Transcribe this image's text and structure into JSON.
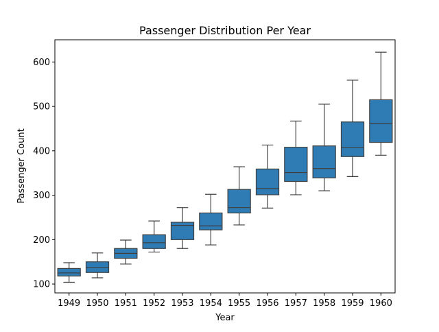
{
  "chart_data": {
    "type": "boxplot",
    "title": "Passenger Distribution Per Year",
    "xlabel": "Year",
    "ylabel": "Passenger Count",
    "ylim": [
      80,
      650
    ],
    "yticks": [
      100,
      200,
      300,
      400,
      500,
      600
    ],
    "grid": false,
    "box_color": "#2f7cb5",
    "categories": [
      "1949",
      "1950",
      "1951",
      "1952",
      "1953",
      "1954",
      "1955",
      "1956",
      "1957",
      "1958",
      "1959",
      "1960"
    ],
    "boxes": [
      {
        "whisker_low": 104,
        "q1": 118,
        "median": 125,
        "q3": 135,
        "whisker_high": 148
      },
      {
        "whisker_low": 114,
        "q1": 126,
        "median": 137,
        "q3": 150,
        "whisker_high": 170
      },
      {
        "whisker_low": 145,
        "q1": 158,
        "median": 169,
        "q3": 180,
        "whisker_high": 199
      },
      {
        "whisker_low": 172,
        "q1": 180,
        "median": 193,
        "q3": 211,
        "whisker_high": 242
      },
      {
        "whisker_low": 180,
        "q1": 200,
        "median": 232,
        "q3": 239,
        "whisker_high": 272
      },
      {
        "whisker_low": 188,
        "q1": 222,
        "median": 231,
        "q3": 260,
        "whisker_high": 302
      },
      {
        "whisker_low": 233,
        "q1": 260,
        "median": 272,
        "q3": 313,
        "whisker_high": 364
      },
      {
        "whisker_low": 271,
        "q1": 301,
        "median": 315,
        "q3": 359,
        "whisker_high": 413
      },
      {
        "whisker_low": 301,
        "q1": 331,
        "median": 351,
        "q3": 408,
        "whisker_high": 467
      },
      {
        "whisker_low": 310,
        "q1": 339,
        "median": 360,
        "q3": 411,
        "whisker_high": 505
      },
      {
        "whisker_low": 342,
        "q1": 387,
        "median": 407,
        "q3": 465,
        "whisker_high": 559
      },
      {
        "whisker_low": 390,
        "q1": 419,
        "median": 461,
        "q3": 515,
        "whisker_high": 622
      }
    ]
  }
}
